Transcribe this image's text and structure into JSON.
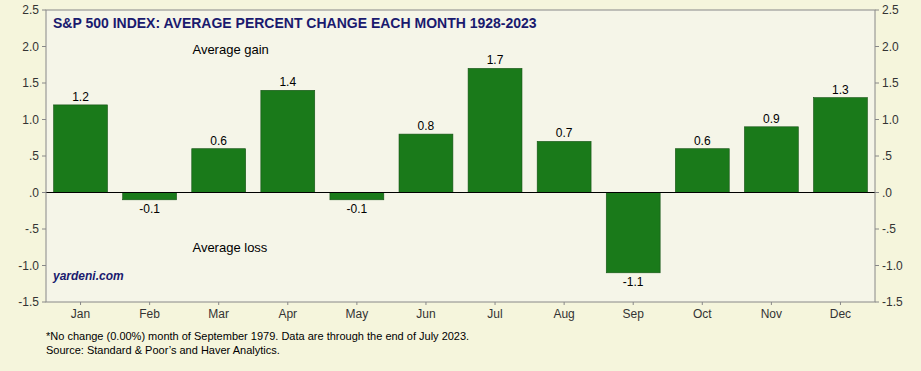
{
  "chart_data": {
    "type": "bar",
    "title": "S&P 500 INDEX: AVERAGE PERCENT CHANGE EACH MONTH 1928-2023",
    "categories": [
      "Jan",
      "Feb",
      "Mar",
      "Apr",
      "May",
      "Jun",
      "Jul",
      "Aug",
      "Sep",
      "Oct",
      "Nov",
      "Dec"
    ],
    "values": [
      1.2,
      -0.1,
      0.6,
      1.4,
      -0.1,
      0.8,
      1.7,
      0.7,
      -1.1,
      0.6,
      0.9,
      1.3
    ],
    "color": "#1a7a1a",
    "data_labels": true,
    "grid": false,
    "ylim": [
      -1.5,
      2.5
    ],
    "yticks": [
      -1.5,
      {
        "value": -1.0,
        "label": "-1.0"
      },
      {
        "value": -0.5,
        "label": "-.5"
      },
      {
        "value": 0.0,
        "label": ".0"
      },
      {
        "value": 0.5,
        "label": ".5"
      },
      {
        "value": 1.0,
        "label": "1.0"
      },
      1.5,
      {
        "value": 2.0,
        "label": "2.0"
      },
      2.5
    ],
    "y2lim": [
      -1.5,
      2.5
    ],
    "y2ticks": [
      -1.5,
      {
        "value": -1.0,
        "label": "-1.0"
      },
      {
        "value": -0.5,
        "label": "-.5"
      },
      {
        "value": 0.0,
        "label": ".0"
      },
      {
        "value": 0.5,
        "label": ".5"
      },
      {
        "value": 1.0,
        "label": "1.0"
      },
      1.5,
      {
        "value": 2.0,
        "label": "2.0"
      },
      2.5
    ],
    "annotations": [
      "Average gain",
      "Average loss"
    ],
    "watermark": "yardeni.com",
    "footnotes": [
      "*No change (0.00%) month of September 1979. Data are through the end of July 2023.",
      "Source: Standard & Poor’s and Haver Analytics."
    ]
  }
}
